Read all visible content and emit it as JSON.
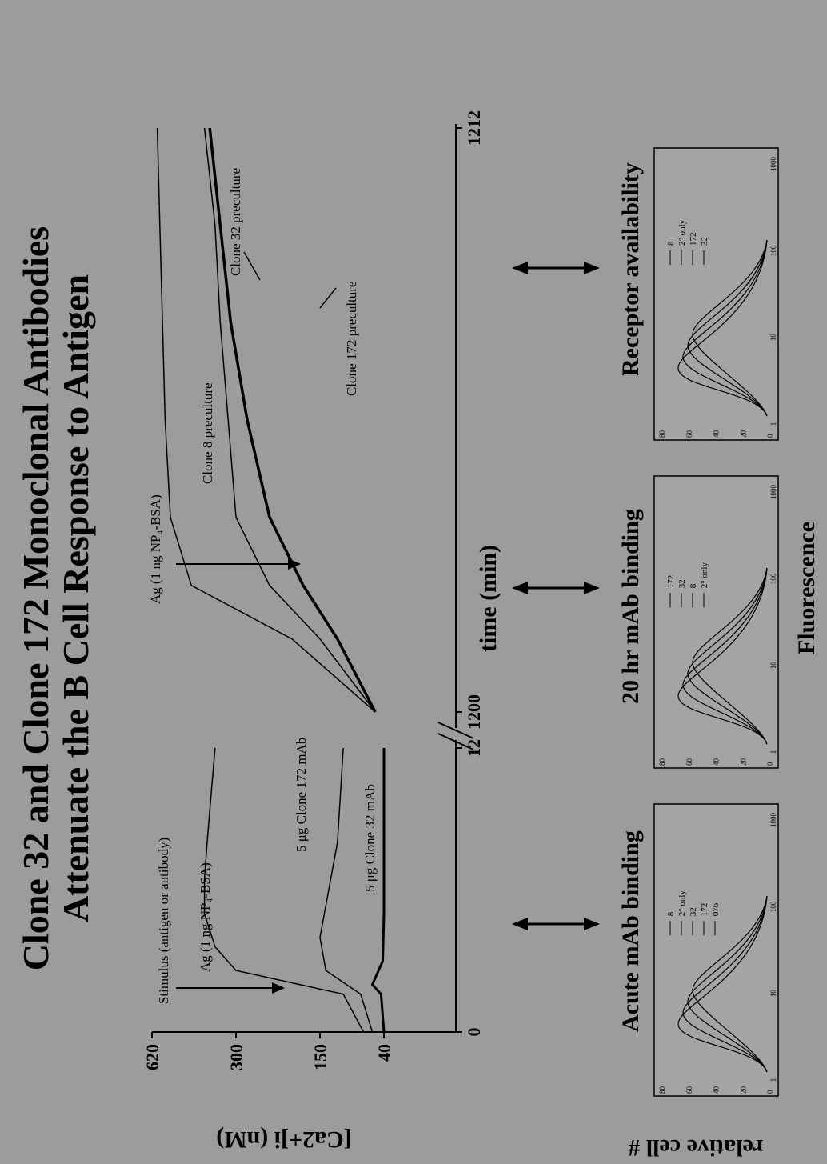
{
  "title_line1": "Clone 32 and Clone 172 Monoclonal Antibodies",
  "title_line2": "Attenuate the B Cell Response to Antigen",
  "colors": {
    "background": "#9c9c9c",
    "ink": "#000000",
    "panel": "#a4a4a4"
  },
  "chart_data": [
    {
      "type": "line",
      "ylabel": "[Ca2+]i (nM)",
      "xlabel": "time (min)",
      "y_ticks": [
        "620",
        "300",
        "150",
        "40"
      ],
      "x_ticks": [
        "0",
        "12",
        "1200",
        "1212"
      ],
      "annotations": {
        "stimulus": "Stimulus (antigen or antibody)",
        "ag_left": "Ag (1 ng NP₄-BSA)",
        "clone172_mab": "5 μg Clone 172 mAb",
        "clone32_mab": "5 μg Clone 32 mAb",
        "ag_right": "Ag (1 ng NP₄-BSA)",
        "clone8_preculture": "Clone 8 preculture",
        "clone172_preculture": "Clone 172 preculture",
        "clone32_preculture": "Clone 32 preculture"
      },
      "series": [
        {
          "name": "Ag (1 ng NP₄-BSA)",
          "x": [
            0,
            1.6,
            2.6,
            3.6,
            5,
            6.5,
            8,
            10,
            12
          ],
          "y": [
            75,
            110,
            300,
            380,
            420,
            420,
            410,
            395,
            380
          ]
        },
        {
          "name": "5 μg Clone 172 mAb",
          "x": [
            0,
            1.6,
            2.6,
            4,
            6,
            8,
            10,
            12
          ],
          "y": [
            60,
            80,
            140,
            150,
            135,
            120,
            115,
            110
          ]
        },
        {
          "name": "5 μg Clone 32 mAb",
          "x": [
            0,
            1.6,
            2,
            3,
            5,
            8,
            12
          ],
          "y": [
            40,
            45,
            60,
            42,
            40,
            40,
            40
          ]
        },
        {
          "name": "Clone 8 preculture",
          "x": [
            1200,
            1201.5,
            1202.6,
            1204,
            1206,
            1208,
            1210,
            1212
          ],
          "y": [
            55,
            200,
            470,
            550,
            570,
            580,
            590,
            600
          ]
        },
        {
          "name": "Clone 172 preculture",
          "x": [
            1200,
            1201.5,
            1202.6,
            1204,
            1206,
            1208,
            1210,
            1212
          ],
          "y": [
            55,
            150,
            240,
            300,
            330,
            360,
            380,
            420
          ]
        },
        {
          "name": "Clone 32 preculture",
          "x": [
            1200,
            1201.5,
            1202.6,
            1204,
            1206,
            1208,
            1210,
            1212
          ],
          "y": [
            55,
            120,
            180,
            240,
            280,
            320,
            360,
            400
          ]
        }
      ]
    },
    {
      "type": "line",
      "panel_label": "Acute mAb binding",
      "xlabel": "Fluorescence",
      "ylabel": "relative cell #",
      "legend": [
        "8",
        "2° only",
        "32",
        "172",
        "076"
      ],
      "y_ticks": [
        "80",
        "60",
        "40",
        "20",
        "0"
      ],
      "x_ticks": [
        "1",
        "10",
        "100",
        "1000"
      ]
    },
    {
      "type": "line",
      "panel_label": "20 hr mAb binding",
      "xlabel": "Fluorescence",
      "legend": [
        "172",
        "32",
        "8",
        "2° only"
      ],
      "y_ticks": [
        "80",
        "60",
        "40",
        "20",
        "0"
      ],
      "x_ticks": [
        "1",
        "10",
        "100",
        "1000"
      ]
    },
    {
      "type": "line",
      "panel_label": "Receptor availability",
      "xlabel": "Fluorescence",
      "legend": [
        "8",
        "2° only",
        "172",
        "32"
      ],
      "y_ticks": [
        "80",
        "60",
        "40",
        "20",
        "0"
      ],
      "x_ticks": [
        "1",
        "10",
        "100",
        "1000"
      ]
    }
  ]
}
